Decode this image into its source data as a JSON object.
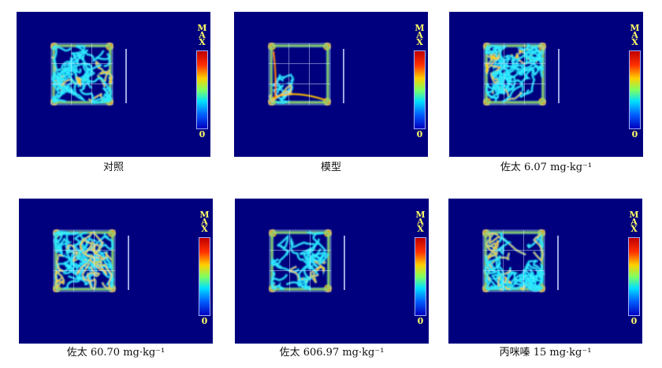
{
  "colorbar": {
    "max_label": [
      "M",
      "A",
      "X"
    ],
    "min_label": "0"
  },
  "panels": [
    {
      "id": "control",
      "caption": "对照",
      "pattern": "dense-uniform"
    },
    {
      "id": "model",
      "caption": "模型",
      "pattern": "periphery-only"
    },
    {
      "id": "zuotai-6-07",
      "caption": "佐太 6.07 mg·kg⁻¹",
      "pattern": "dense-uniform"
    },
    {
      "id": "zuotai-60-70",
      "caption": "佐太 60.70 mg·kg⁻¹",
      "pattern": "dense-uniform"
    },
    {
      "id": "zuotai-606-97",
      "caption": "佐太 606.97 mg·kg⁻¹",
      "pattern": "sparse-center"
    },
    {
      "id": "piracetam-15",
      "caption": "丙咪嗪 15 mg·kg⁻¹",
      "pattern": "dense-uniform"
    }
  ]
}
